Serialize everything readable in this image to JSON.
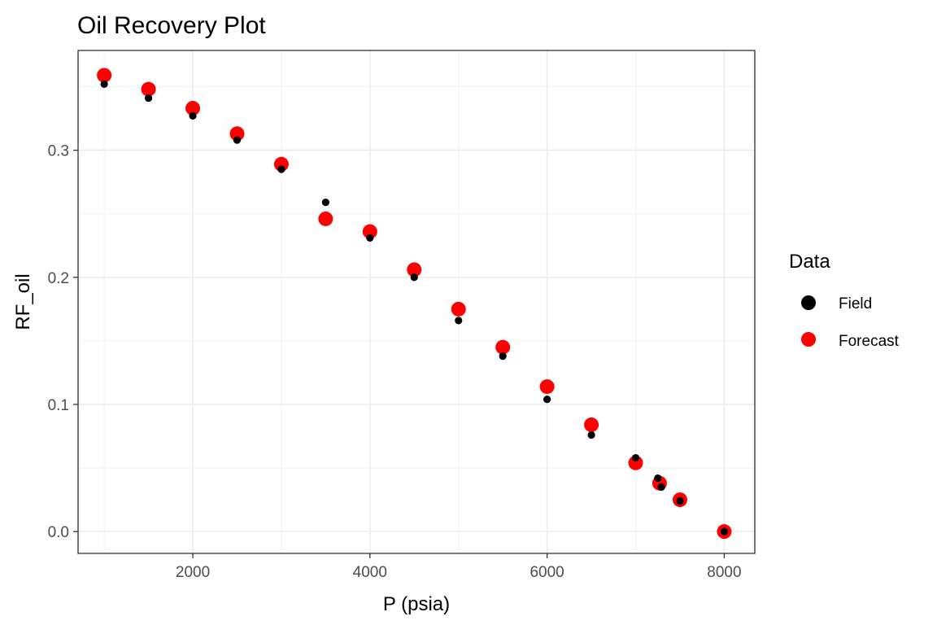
{
  "chart_data": {
    "type": "scatter",
    "title": "Oil Recovery Plot",
    "xlabel": "P (psia)",
    "ylabel": "RF_oil",
    "xlim": [
      705,
      8345
    ],
    "ylim": [
      -0.0172,
      0.3785
    ],
    "x_ticks": [
      2000,
      4000,
      6000,
      8000
    ],
    "y_ticks": [
      0.0,
      0.1,
      0.2,
      0.3
    ],
    "x_tick_labels": [
      "2000",
      "4000",
      "6000",
      "8000"
    ],
    "y_tick_labels": [
      "0.0",
      "0.1",
      "0.2",
      "0.3"
    ],
    "grid": true,
    "legend": {
      "title": "Data",
      "placement": "right",
      "entries": [
        {
          "label": "Field",
          "color": "#000000"
        },
        {
          "label": "Forecast",
          "color": "#ff0000"
        }
      ]
    },
    "series": [
      {
        "name": "Field",
        "color": "#000000",
        "points": [
          {
            "x": 1000,
            "y": 0.352
          },
          {
            "x": 1500,
            "y": 0.341
          },
          {
            "x": 2000,
            "y": 0.327
          },
          {
            "x": 2500,
            "y": 0.308
          },
          {
            "x": 3000,
            "y": 0.285
          },
          {
            "x": 3500,
            "y": 0.259
          },
          {
            "x": 4000,
            "y": 0.231
          },
          {
            "x": 4500,
            "y": 0.2
          },
          {
            "x": 5000,
            "y": 0.166
          },
          {
            "x": 5500,
            "y": 0.138
          },
          {
            "x": 6000,
            "y": 0.104
          },
          {
            "x": 6500,
            "y": 0.076
          },
          {
            "x": 7000,
            "y": 0.058
          },
          {
            "x": 7250,
            "y": 0.042
          },
          {
            "x": 7290,
            "y": 0.035
          },
          {
            "x": 7500,
            "y": 0.024
          },
          {
            "x": 8000,
            "y": 0.0
          }
        ]
      },
      {
        "name": "Forecast",
        "color": "#ff0000",
        "points": [
          {
            "x": 1000,
            "y": 0.359
          },
          {
            "x": 1500,
            "y": 0.348
          },
          {
            "x": 2000,
            "y": 0.333
          },
          {
            "x": 2500,
            "y": 0.313
          },
          {
            "x": 3000,
            "y": 0.289
          },
          {
            "x": 3500,
            "y": 0.246
          },
          {
            "x": 4000,
            "y": 0.236
          },
          {
            "x": 4500,
            "y": 0.206
          },
          {
            "x": 5000,
            "y": 0.175
          },
          {
            "x": 5500,
            "y": 0.145
          },
          {
            "x": 6000,
            "y": 0.114
          },
          {
            "x": 6500,
            "y": 0.084
          },
          {
            "x": 7000,
            "y": 0.054
          },
          {
            "x": 7270,
            "y": 0.038
          },
          {
            "x": 7500,
            "y": 0.025
          },
          {
            "x": 8000,
            "y": 0.0
          }
        ]
      }
    ]
  }
}
